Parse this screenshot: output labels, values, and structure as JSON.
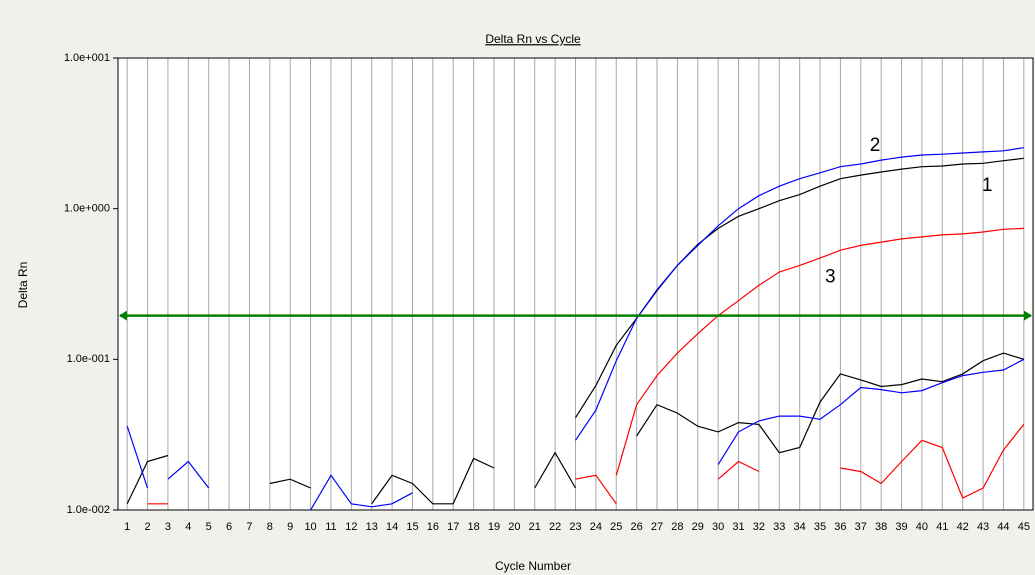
{
  "chart_data": {
    "type": "line",
    "title": "Delta Rn vs Cycle",
    "x_label": "Cycle Number",
    "y_label": "Delta Rn",
    "log_y": true,
    "grid": true,
    "x": [
      1,
      2,
      3,
      4,
      5,
      6,
      7,
      8,
      9,
      10,
      11,
      12,
      13,
      14,
      15,
      16,
      17,
      18,
      19,
      20,
      21,
      22,
      23,
      24,
      25,
      26,
      27,
      28,
      29,
      30,
      31,
      32,
      33,
      34,
      35,
      36,
      37,
      38,
      39,
      40,
      41,
      42,
      43,
      44,
      45
    ],
    "xlim": [
      0.55,
      45.45
    ],
    "xticks": [
      1,
      2,
      3,
      4,
      5,
      6,
      7,
      8,
      9,
      10,
      11,
      12,
      13,
      14,
      15,
      16,
      17,
      18,
      19,
      20,
      21,
      22,
      23,
      24,
      25,
      26,
      27,
      28,
      29,
      30,
      31,
      32,
      33,
      34,
      35,
      36,
      37,
      38,
      39,
      40,
      41,
      42,
      43,
      44,
      45
    ],
    "ylim": [
      0.01,
      10
    ],
    "yticks": [
      {
        "value": 0.01,
        "label": "1.0e-002"
      },
      {
        "value": 0.1,
        "label": "1.0e-001"
      },
      {
        "value": 1,
        "label": "1.0e+000"
      },
      {
        "value": 10,
        "label": "1.0e+001"
      }
    ],
    "threshold": 0.195,
    "threshold_color": "#008000",
    "series": [
      {
        "color": "#000000",
        "values": [
          null,
          null,
          null,
          null,
          null,
          null,
          null,
          null,
          null,
          null,
          null,
          null,
          null,
          null,
          null,
          null,
          null,
          null,
          null,
          null,
          null,
          null,
          0.041,
          0.067,
          0.124,
          0.187,
          0.286,
          0.42,
          0.58,
          0.74,
          0.89,
          1.0,
          1.13,
          1.24,
          1.41,
          1.58,
          1.67,
          1.75,
          1.83,
          1.9,
          1.92,
          1.98,
          2.0,
          2.08,
          2.16
        ]
      },
      {
        "color": "#0000ff",
        "values": [
          null,
          null,
          null,
          null,
          null,
          null,
          null,
          null,
          null,
          null,
          null,
          null,
          null,
          null,
          null,
          null,
          null,
          null,
          null,
          null,
          null,
          null,
          0.029,
          0.046,
          0.098,
          0.187,
          0.29,
          0.42,
          0.57,
          0.77,
          1.0,
          1.22,
          1.41,
          1.58,
          1.73,
          1.9,
          1.98,
          2.1,
          2.2,
          2.27,
          2.3,
          2.34,
          2.38,
          2.42,
          2.54
        ]
      },
      {
        "color": "#ff0000",
        "values": [
          null,
          null,
          null,
          null,
          null,
          null,
          null,
          null,
          null,
          null,
          null,
          null,
          null,
          null,
          null,
          null,
          null,
          null,
          null,
          null,
          null,
          null,
          null,
          null,
          0.017,
          0.05,
          0.078,
          0.11,
          0.148,
          0.195,
          0.245,
          0.31,
          0.38,
          0.42,
          0.47,
          0.53,
          0.57,
          0.6,
          0.63,
          0.65,
          0.67,
          0.68,
          0.7,
          0.73,
          0.74
        ]
      },
      {
        "color": "#000000",
        "values": [
          0.011,
          0.021,
          0.023,
          null,
          null,
          null,
          null,
          0.015,
          0.016,
          0.014,
          null,
          null,
          0.011,
          0.017,
          0.015,
          0.011,
          0.011,
          0.022,
          0.019,
          null,
          0.014,
          0.024,
          0.014,
          null,
          null,
          null,
          null,
          null,
          null,
          null,
          null,
          null,
          null,
          null,
          null,
          null,
          null,
          null,
          null,
          null,
          null,
          null,
          null,
          null,
          null
        ]
      },
      {
        "color": "#000000",
        "values": [
          null,
          null,
          null,
          null,
          null,
          null,
          null,
          null,
          null,
          null,
          null,
          null,
          null,
          null,
          null,
          null,
          null,
          null,
          null,
          null,
          null,
          null,
          null,
          null,
          null,
          0.031,
          0.05,
          0.044,
          0.036,
          0.033,
          0.038,
          0.037,
          0.024,
          0.026,
          0.052,
          0.08,
          0.073,
          0.066,
          0.068,
          0.074,
          0.071,
          0.08,
          0.098,
          0.11,
          0.1
        ]
      },
      {
        "color": "#0000ff",
        "values": [
          0.036,
          0.014,
          null,
          null,
          null,
          null,
          null,
          null,
          null,
          null,
          null,
          null,
          null,
          null,
          null,
          null,
          null,
          null,
          null,
          null,
          null,
          null,
          null,
          null,
          null,
          null,
          null,
          null,
          null,
          null,
          null,
          null,
          null,
          null,
          null,
          null,
          null,
          null,
          null,
          null,
          null,
          null,
          null,
          null,
          null
        ]
      },
      {
        "color": "#0000ff",
        "values": [
          null,
          null,
          0.016,
          0.021,
          0.014,
          null,
          null,
          null,
          null,
          0.01,
          0.017,
          0.011,
          0.0105,
          0.011,
          0.013,
          null,
          null,
          null,
          null,
          null,
          null,
          null,
          null,
          null,
          null,
          null,
          null,
          null,
          null,
          null,
          null,
          null,
          null,
          null,
          null,
          null,
          null,
          null,
          null,
          null,
          null,
          null,
          null,
          null,
          null
        ]
      },
      {
        "color": "#0000ff",
        "values": [
          null,
          null,
          null,
          null,
          null,
          null,
          null,
          null,
          null,
          null,
          null,
          null,
          null,
          null,
          null,
          null,
          null,
          null,
          null,
          null,
          null,
          null,
          null,
          null,
          null,
          null,
          null,
          null,
          null,
          0.02,
          0.033,
          0.039,
          0.042,
          0.042,
          0.04,
          0.05,
          0.065,
          0.063,
          0.06,
          0.062,
          0.07,
          0.078,
          0.082,
          0.085,
          0.1
        ]
      },
      {
        "color": "#ff0000",
        "values": [
          null,
          0.011,
          0.011,
          null,
          null,
          null,
          null,
          null,
          null,
          null,
          null,
          null,
          null,
          null,
          null,
          null,
          null,
          null,
          null,
          null,
          null,
          null,
          0.016,
          0.017,
          0.011,
          null,
          null,
          null,
          null,
          0.016,
          0.021,
          0.018,
          null,
          null,
          null,
          0.019,
          0.018,
          0.015,
          0.021,
          0.029,
          0.026,
          0.012,
          0.014,
          0.025,
          0.037
        ]
      }
    ],
    "annotations": [
      {
        "text": "2",
        "x": 37.7,
        "y": 2.6
      },
      {
        "text": "1",
        "x": 43.2,
        "y": 1.41
      },
      {
        "text": "3",
        "x": 35.5,
        "y": 0.35
      }
    ]
  }
}
